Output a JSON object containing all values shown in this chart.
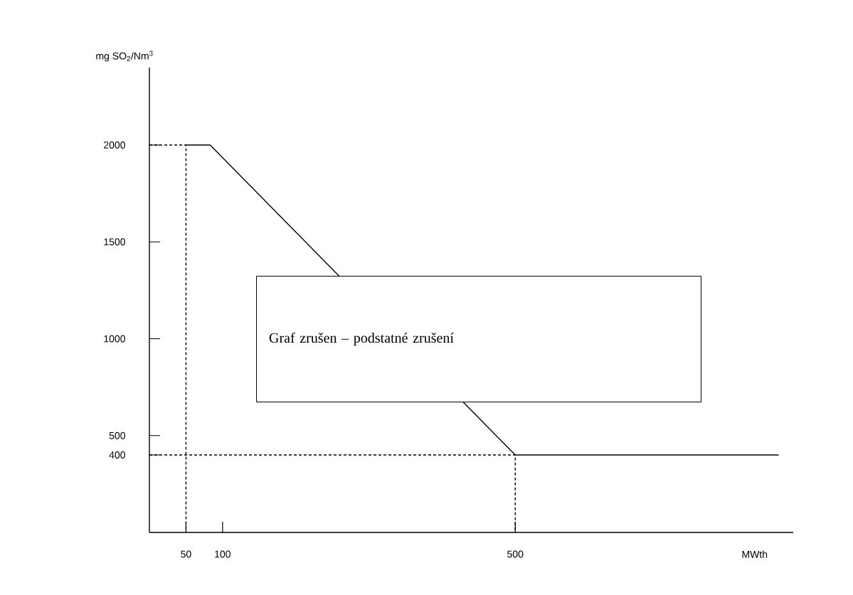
{
  "chart_data": {
    "type": "line",
    "xlabel": "MWth",
    "ylabel": "mg SO$_{2}$/Nm$^{3}$",
    "xlim": [
      0,
      880
    ],
    "ylim": [
      0,
      2400
    ],
    "xticks": [
      50,
      100,
      500
    ],
    "yticks": [
      400,
      500,
      1000,
      1500,
      2000
    ],
    "grid": false,
    "marker": "none",
    "series": [
      {
        "color": "#000000",
        "line_style": "solid",
        "x": [
          50,
          83,
          500,
          860
        ],
        "values": [
          2000,
          2000,
          400,
          400
        ]
      },
      {
        "color": "#000000",
        "line_style": "dashed",
        "x": [
          0,
          50,
          50
        ],
        "values": [
          2000,
          2000,
          0
        ]
      },
      {
        "color": "#000000",
        "line_style": "dashed",
        "x": [
          0,
          500,
          500
        ],
        "values": [
          400,
          400,
          0
        ]
      }
    ],
    "annotations": [
      "Graf zrušen – podstatné zrušení"
    ]
  }
}
